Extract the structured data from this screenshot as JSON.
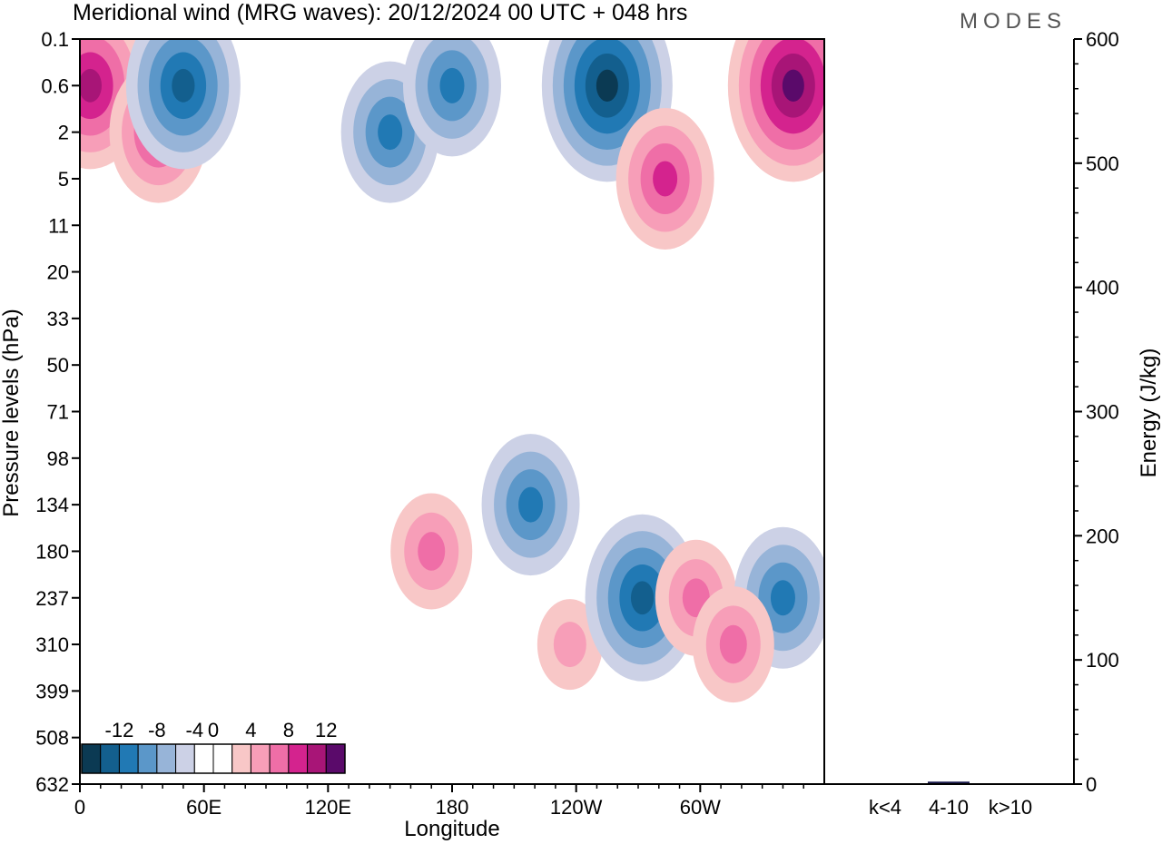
{
  "title": "Meridional wind (MRG waves):  20/12/2024  00 UTC  + 048 hrs",
  "logo": "MODES",
  "chart_data": [
    {
      "type": "heatmap",
      "xlabel": "Longitude",
      "ylabel": "Pressure levels (hPa)",
      "x_ticks": [
        "0",
        "60E",
        "120E",
        "180",
        "120W",
        "60W"
      ],
      "x_range_deg_east": [
        0,
        360
      ],
      "y_ticks": [
        "0.1",
        "0.6",
        "2",
        "5",
        "11",
        "20",
        "33",
        "50",
        "71",
        "98",
        "134",
        "180",
        "237",
        "310",
        "399",
        "508",
        "632"
      ],
      "colorbar": {
        "labels": [
          "-12",
          "-8",
          "-4",
          "0",
          "4",
          "8",
          "12"
        ],
        "levels": [
          -14,
          -12,
          -10,
          -8,
          -6,
          -4,
          -2,
          2,
          4,
          6,
          8,
          10,
          12,
          14
        ],
        "colors": [
          "#0b3a53",
          "#135f8e",
          "#2179b4",
          "#5b97c9",
          "#97b4d8",
          "#ccd1e6",
          "#ffffff",
          "#ffffff",
          "#f8c7c7",
          "#f79eb8",
          "#ef6ea7",
          "#d4238e",
          "#a81577",
          "#5a0a6a"
        ]
      },
      "features": [
        {
          "lon": 5,
          "level": "0.6",
          "value": 12,
          "sign": "positive"
        },
        {
          "lon": 38,
          "level": "2",
          "value": 10,
          "sign": "positive"
        },
        {
          "lon": 50,
          "level": "0.6",
          "value": -12,
          "sign": "negative"
        },
        {
          "lon": 150,
          "level": "2",
          "value": -10,
          "sign": "negative"
        },
        {
          "lon": 180,
          "level": "0.6",
          "value": -10,
          "sign": "negative"
        },
        {
          "lon": 255,
          "level": "0.6",
          "value": -14,
          "sign": "negative"
        },
        {
          "lon": 345,
          "level": "0.6",
          "value": 14,
          "sign": "positive"
        },
        {
          "lon": 283,
          "level": "5",
          "value": 10,
          "sign": "positive"
        },
        {
          "lon": 170,
          "level": "180",
          "value": 8,
          "sign": "positive"
        },
        {
          "lon": 218,
          "level": "134",
          "value": -10,
          "sign": "negative"
        },
        {
          "lon": 237,
          "level": "310",
          "value": 6,
          "sign": "positive"
        },
        {
          "lon": 272,
          "level": "237",
          "value": -12,
          "sign": "negative"
        },
        {
          "lon": 298,
          "level": "237",
          "value": 8,
          "sign": "positive"
        },
        {
          "lon": 340,
          "level": "237",
          "value": -10,
          "sign": "negative"
        },
        {
          "lon": 316,
          "level": "310",
          "value": 8,
          "sign": "positive"
        }
      ]
    },
    {
      "type": "bar",
      "ylabel": "Energy (J/kg)",
      "ylim": [
        0,
        600
      ],
      "y_ticks": [
        "0",
        "100",
        "200",
        "300",
        "400",
        "500",
        "600"
      ],
      "categories": [
        "k<4",
        "4-10",
        "k>10"
      ],
      "values": [
        0.5,
        2,
        0.5
      ],
      "bar_color": "#1a1a4e"
    }
  ]
}
